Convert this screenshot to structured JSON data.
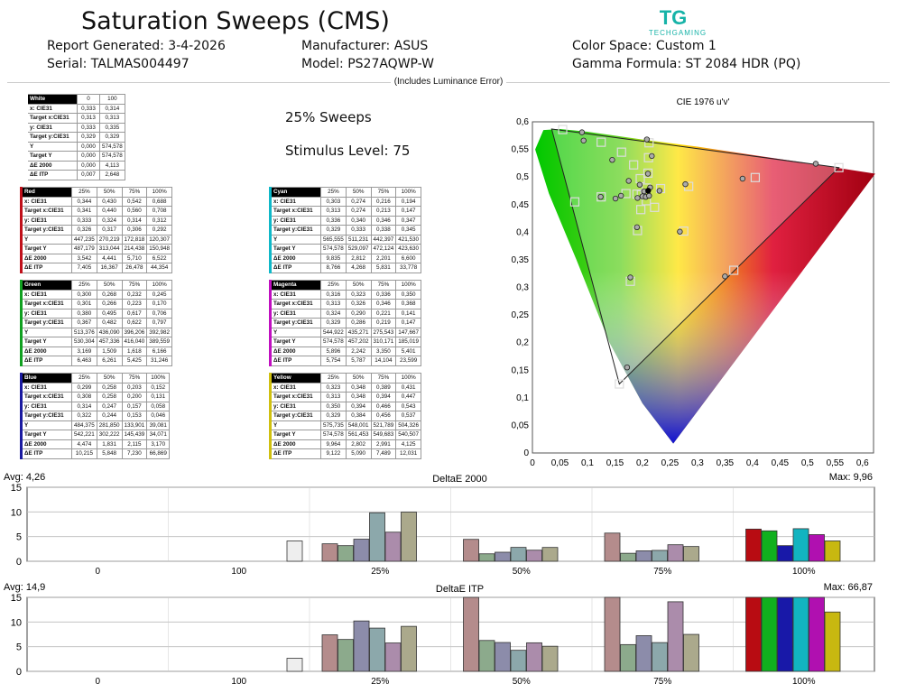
{
  "header": {
    "title": "Saturation Sweeps (CMS)",
    "report_generated": "Report Generated: 3-4-2026",
    "serial": "Serial: TALMAS004497",
    "manufacturer": "Manufacturer: ASUS",
    "model": "Model: PS27AQWP-W",
    "color_space": "Color Space: Custom 1",
    "gamma_formula": "Gamma Formula: ST 2084 HDR (PQ)",
    "luminance_note": "(Includes Luminance Error)",
    "logo_text": "TECHGAMING",
    "logo_mark": "TG"
  },
  "info": {
    "sweeps": "25% Sweeps",
    "stimulus": "Stimulus Level: 75"
  },
  "tables": {
    "white": {
      "name": "White",
      "color": "#ffffff",
      "cols": [
        "0",
        "100"
      ],
      "rows": [
        [
          "x: CIE31",
          "0,333",
          "0,314"
        ],
        [
          "Target x:CIE31",
          "0,313",
          "0,313"
        ],
        [
          "y: CIE31",
          "0,333",
          "0,335"
        ],
        [
          "Target y:CIE31",
          "0,329",
          "0,329"
        ],
        [
          "Y",
          "0,000",
          "574,578"
        ],
        [
          "Target Y",
          "0,000",
          "574,578"
        ],
        [
          "ΔE 2000",
          "0,000",
          "4,113"
        ],
        [
          "ΔE ITP",
          "0,007",
          "2,648"
        ]
      ]
    },
    "red": {
      "name": "Red",
      "color": "#c0101a",
      "cols": [
        "25%",
        "50%",
        "75%",
        "100%"
      ],
      "rows": [
        [
          "x: CIE31",
          "0,344",
          "0,430",
          "0,542",
          "0,688"
        ],
        [
          "Target x:CIE31",
          "0,341",
          "0,440",
          "0,560",
          "0,708"
        ],
        [
          "y: CIE31",
          "0,333",
          "0,324",
          "0,314",
          "0,312"
        ],
        [
          "Target y:CIE31",
          "0,326",
          "0,317",
          "0,306",
          "0,292"
        ],
        [
          "Y",
          "447,235",
          "270,219",
          "172,818",
          "120,307"
        ],
        [
          "Target Y",
          "487,179",
          "313,044",
          "214,438",
          "150,948"
        ],
        [
          "ΔE 2000",
          "3,542",
          "4,441",
          "5,710",
          "6,522"
        ],
        [
          "ΔE ITP",
          "7,405",
          "16,367",
          "26,478",
          "44,354"
        ]
      ]
    },
    "green": {
      "name": "Green",
      "color": "#10a020",
      "cols": [
        "25%",
        "50%",
        "75%",
        "100%"
      ],
      "rows": [
        [
          "x: CIE31",
          "0,300",
          "0,268",
          "0,232",
          "0,245"
        ],
        [
          "Target x:CIE31",
          "0,301",
          "0,266",
          "0,223",
          "0,170"
        ],
        [
          "y: CIE31",
          "0,380",
          "0,495",
          "0,617",
          "0,706"
        ],
        [
          "Target y:CIE31",
          "0,367",
          "0,482",
          "0,622",
          "0,797"
        ],
        [
          "Y",
          "513,376",
          "436,090",
          "396,206",
          "392,982"
        ],
        [
          "Target Y",
          "530,304",
          "457,336",
          "416,040",
          "389,559"
        ],
        [
          "ΔE 2000",
          "3,169",
          "1,509",
          "1,618",
          "6,166"
        ],
        [
          "ΔE ITP",
          "6,463",
          "6,261",
          "5,425",
          "31,246"
        ]
      ]
    },
    "blue": {
      "name": "Blue",
      "color": "#1a1aa0",
      "cols": [
        "25%",
        "50%",
        "75%",
        "100%"
      ],
      "rows": [
        [
          "x: CIE31",
          "0,299",
          "0,258",
          "0,203",
          "0,152"
        ],
        [
          "Target x:CIE31",
          "0,308",
          "0,258",
          "0,200",
          "0,131"
        ],
        [
          "y: CIE31",
          "0,314",
          "0,247",
          "0,157",
          "0,058"
        ],
        [
          "Target y:CIE31",
          "0,322",
          "0,244",
          "0,153",
          "0,046"
        ],
        [
          "Y",
          "484,375",
          "281,850",
          "133,901",
          "39,081"
        ],
        [
          "Target Y",
          "542,221",
          "302,222",
          "145,439",
          "34,071"
        ],
        [
          "ΔE 2000",
          "4,474",
          "1,831",
          "2,115",
          "3,170"
        ],
        [
          "ΔE ITP",
          "10,215",
          "5,848",
          "7,230",
          "66,869"
        ]
      ]
    },
    "cyan": {
      "name": "Cyan",
      "color": "#10b8c8",
      "cols": [
        "25%",
        "50%",
        "75%",
        "100%"
      ],
      "rows": [
        [
          "x: CIE31",
          "0,303",
          "0,274",
          "0,216",
          "0,194"
        ],
        [
          "Target x:CIE31",
          "0,313",
          "0,274",
          "0,213",
          "0,147"
        ],
        [
          "y: CIE31",
          "0,336",
          "0,340",
          "0,346",
          "0,347"
        ],
        [
          "Target y:CIE31",
          "0,329",
          "0,333",
          "0,338",
          "0,345"
        ],
        [
          "Y",
          "565,555",
          "511,231",
          "442,397",
          "421,530"
        ],
        [
          "Target Y",
          "574,578",
          "529,097",
          "472,124",
          "423,630"
        ],
        [
          "ΔE 2000",
          "9,835",
          "2,812",
          "2,201",
          "6,600"
        ],
        [
          "ΔE ITP",
          "8,766",
          "4,268",
          "5,831",
          "33,778"
        ]
      ]
    },
    "magenta": {
      "name": "Magenta",
      "color": "#c010c0",
      "cols": [
        "25%",
        "50%",
        "75%",
        "100%"
      ],
      "rows": [
        [
          "x: CIE31",
          "0,316",
          "0,323",
          "0,336",
          "0,350"
        ],
        [
          "Target x:CIE31",
          "0,313",
          "0,326",
          "0,346",
          "0,368"
        ],
        [
          "y: CIE31",
          "0,324",
          "0,290",
          "0,221",
          "0,141"
        ],
        [
          "Target y:CIE31",
          "0,329",
          "0,286",
          "0,219",
          "0,147"
        ],
        [
          "Y",
          "544,922",
          "435,271",
          "275,543",
          "147,667"
        ],
        [
          "Target Y",
          "574,578",
          "457,202",
          "310,171",
          "185,019"
        ],
        [
          "ΔE 2000",
          "5,896",
          "2,242",
          "3,350",
          "5,401"
        ],
        [
          "ΔE ITP",
          "5,754",
          "5,787",
          "14,104",
          "23,599"
        ]
      ]
    },
    "yellow": {
      "name": "Yellow",
      "color": "#d0c010",
      "cols": [
        "25%",
        "50%",
        "75%",
        "100%"
      ],
      "rows": [
        [
          "x: CIE31",
          "0,323",
          "0,348",
          "0,389",
          "0,431"
        ],
        [
          "Target x:CIE31",
          "0,313",
          "0,348",
          "0,394",
          "0,447"
        ],
        [
          "y: CIE31",
          "0,350",
          "0,394",
          "0,466",
          "0,543"
        ],
        [
          "Target y:CIE31",
          "0,329",
          "0,384",
          "0,456",
          "0,537"
        ],
        [
          "Y",
          "575,735",
          "548,001",
          "521,789",
          "504,326"
        ],
        [
          "Target Y",
          "574,578",
          "561,453",
          "549,683",
          "540,507"
        ],
        [
          "ΔE 2000",
          "9,964",
          "2,802",
          "2,991",
          "4,125"
        ],
        [
          "ΔE ITP",
          "9,122",
          "5,090",
          "7,489",
          "12,031"
        ]
      ]
    }
  },
  "chart_data": [
    {
      "type": "scatter",
      "title": "CIE 1976 u'v'",
      "xlim": [
        0,
        0.62
      ],
      "ylim": [
        0,
        0.6
      ],
      "xticks": [
        "0",
        "0,05",
        "0,1",
        "0,15",
        "0,2",
        "0,25",
        "0,3",
        "0,35",
        "0,4",
        "0,45",
        "0,5",
        "0,55",
        "0,6"
      ],
      "yticks": [
        "0",
        "0,05",
        "0,1",
        "0,15",
        "0,2",
        "0,25",
        "0,3",
        "0,35",
        "0,4",
        "0,45",
        "0,5",
        "0,55",
        "0,6"
      ],
      "grid": false,
      "gamut": [
        [
          0.557,
          0.517
        ],
        [
          0.035,
          0.587
        ],
        [
          0.158,
          0.125
        ]
      ],
      "targets": [
        [
          0.198,
          0.468
        ],
        [
          0.233,
          0.479
        ],
        [
          0.284,
          0.483
        ],
        [
          0.405,
          0.499
        ],
        [
          0.557,
          0.517
        ],
        [
          0.196,
          0.497
        ],
        [
          0.184,
          0.522
        ],
        [
          0.162,
          0.545
        ],
        [
          0.125,
          0.563
        ],
        [
          0.055,
          0.586
        ],
        [
          0.197,
          0.441
        ],
        [
          0.191,
          0.403
        ],
        [
          0.178,
          0.311
        ],
        [
          0.158,
          0.125
        ],
        [
          0.19,
          0.469
        ],
        [
          0.17,
          0.47
        ],
        [
          0.125,
          0.464
        ],
        [
          0.077,
          0.455
        ],
        [
          0.207,
          0.457
        ],
        [
          0.222,
          0.445
        ],
        [
          0.275,
          0.402
        ],
        [
          0.366,
          0.331
        ],
        [
          0.207,
          0.48
        ],
        [
          0.21,
          0.507
        ],
        [
          0.211,
          0.535
        ],
        [
          0.212,
          0.562
        ]
      ],
      "measured": [
        [
          0.203,
          0.474
        ],
        [
          0.231,
          0.475
        ],
        [
          0.278,
          0.487
        ],
        [
          0.382,
          0.497
        ],
        [
          0.515,
          0.524
        ],
        [
          0.195,
          0.486
        ],
        [
          0.175,
          0.493
        ],
        [
          0.145,
          0.531
        ],
        [
          0.093,
          0.566
        ],
        [
          0.09,
          0.581
        ],
        [
          0.2,
          0.465
        ],
        [
          0.19,
          0.409
        ],
        [
          0.178,
          0.318
        ],
        [
          0.172,
          0.155
        ],
        [
          0.191,
          0.462
        ],
        [
          0.161,
          0.466
        ],
        [
          0.124,
          0.464
        ],
        [
          0.151,
          0.461
        ],
        [
          0.206,
          0.464
        ],
        [
          0.212,
          0.466
        ],
        [
          0.268,
          0.401
        ],
        [
          0.35,
          0.32
        ],
        [
          0.214,
          0.481
        ],
        [
          0.21,
          0.506
        ],
        [
          0.217,
          0.538
        ],
        [
          0.208,
          0.568
        ]
      ],
      "white_point": [
        0.2104,
        0.4752
      ]
    },
    {
      "type": "bar",
      "title": "DeltaE 2000",
      "avg_label": "Avg: 4,26",
      "max_label": "Max: 9,96",
      "ylim": [
        0,
        15
      ],
      "yticks": [
        "0",
        "5",
        "10",
        "15"
      ],
      "categories": [
        "0",
        "100",
        "25%",
        "50%",
        "75%",
        "100%"
      ],
      "series_order": [
        "red",
        "green",
        "blue",
        "cyan",
        "magenta",
        "yellow"
      ],
      "colors_25": [
        "#b48c8c",
        "#8caa8c",
        "#8c8caa",
        "#8ca8ab",
        "#ab8cab",
        "#aba98c"
      ],
      "colors_50": [
        "#b48c8c",
        "#8caa8c",
        "#8c8caa",
        "#8ca8ab",
        "#ab8cab",
        "#aba98c"
      ],
      "colors_75": [
        "#b48c8c",
        "#8caa8c",
        "#8c8caa",
        "#8ca8ab",
        "#ab8cab",
        "#aba98c"
      ],
      "colors_100": [
        "#b80c12",
        "#10b01e",
        "#1818a8",
        "#12b4c0",
        "#b010b0",
        "#c8b810"
      ],
      "white_values": [
        0.0,
        4.113
      ],
      "values": {
        "25%": [
          3.542,
          3.169,
          4.474,
          9.835,
          5.896,
          9.964
        ],
        "50%": [
          4.441,
          1.509,
          1.831,
          2.812,
          2.242,
          2.802
        ],
        "75%": [
          5.71,
          1.618,
          2.115,
          2.201,
          3.35,
          2.991
        ],
        "100%": [
          6.522,
          6.166,
          3.17,
          6.6,
          5.401,
          4.125
        ]
      }
    },
    {
      "type": "bar",
      "title": "DeltaE ITP",
      "avg_label": "Avg: 14,9",
      "max_label": "Max: 66,87",
      "ylim": [
        0,
        15
      ],
      "yticks": [
        "0",
        "5",
        "10",
        "15"
      ],
      "categories": [
        "0",
        "100",
        "25%",
        "50%",
        "75%",
        "100%"
      ],
      "white_values": [
        0.007,
        2.648
      ],
      "values": {
        "25%": [
          7.405,
          6.463,
          10.215,
          8.766,
          5.754,
          9.122
        ],
        "50%": [
          16.367,
          6.261,
          5.848,
          4.268,
          5.787,
          5.09
        ],
        "75%": [
          26.478,
          5.425,
          7.23,
          5.831,
          14.104,
          7.489
        ],
        "100%": [
          44.354,
          31.246,
          66.869,
          33.778,
          23.599,
          12.031
        ]
      }
    }
  ]
}
